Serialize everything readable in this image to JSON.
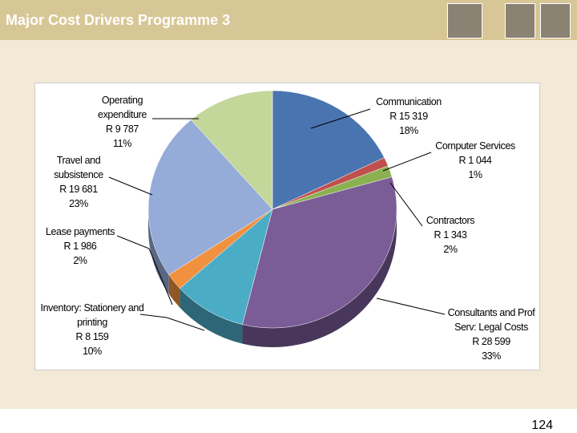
{
  "chart_data": {
    "type": "pie",
    "title": "Major Cost Drivers Programme 3",
    "categories": [
      "Communication",
      "Computer Services",
      "Contractors",
      "Consultants and Prof Serv: Legal Costs",
      "Inventory: Stationery and printing",
      "Lease payments",
      "Travel and subsistence",
      "Operating expenditure"
    ],
    "values": [
      15319,
      1044,
      1343,
      28599,
      8159,
      1986,
      19681,
      9787
    ],
    "value_labels": [
      "R 15 319",
      "R 1 044",
      "R 1 343",
      "R 28 599",
      "R 8 159",
      "R 1 986",
      "R 19 681",
      "R 9 787"
    ],
    "percents": [
      18,
      1,
      2,
      33,
      10,
      2,
      23,
      11
    ],
    "percent_labels": [
      "18%",
      "1%",
      "2%",
      "33%",
      "10%",
      "2%",
      "23%",
      "11%"
    ],
    "colors": [
      "#4a74b0",
      "#c0504d",
      "#8bb050",
      "#7a5c97",
      "#4bacc6",
      "#f0913f",
      "#95abd8",
      "#c4d79b"
    ]
  },
  "page_number": "124"
}
